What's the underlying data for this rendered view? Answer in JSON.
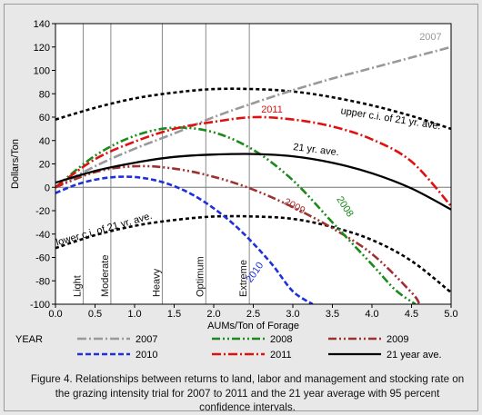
{
  "chart_data": {
    "type": "line",
    "xlabel": "AUMs/Ton of Forage",
    "ylabel": "Dollars/Ton",
    "xlim": [
      0,
      5
    ],
    "ylim": [
      -100,
      140
    ],
    "x_ticks": [
      "0.0",
      "0.5",
      "1.0",
      "1.5",
      "2.0",
      "2.5",
      "3.0",
      "3.5",
      "4.0",
      "4.5",
      "5.0"
    ],
    "y_ticks": [
      "140",
      "120",
      "100",
      "80",
      "60",
      "40",
      "20",
      "0",
      "-20",
      "-40",
      "-60",
      "-80",
      "-100"
    ],
    "grid": false,
    "stocking_rates": [
      {
        "label": "Light",
        "x": 0.35
      },
      {
        "label": "Moderate",
        "x": 0.7
      },
      {
        "label": "Heavy",
        "x": 1.35
      },
      {
        "label": "Optimum",
        "x": 1.9
      },
      {
        "label": "Extreme",
        "x": 2.45
      }
    ],
    "series": [
      {
        "name": "2007",
        "color": "#999999",
        "dash": "dashdot",
        "x": [
          0,
          0.5,
          1,
          1.5,
          2,
          2.5,
          3,
          3.5,
          4,
          4.5,
          5
        ],
        "y": [
          0,
          18,
          33,
          46,
          60,
          72,
          83,
          93,
          102,
          111,
          120
        ],
        "annotation": {
          "text": "2007",
          "x": 4.6,
          "y": 126
        }
      },
      {
        "name": "2008",
        "color": "#1a8a1a",
        "dash": "dashdotdot",
        "x": [
          0,
          0.5,
          1,
          1.5,
          2,
          2.5,
          3,
          3.5,
          4,
          4.3,
          4.55
        ],
        "y": [
          0,
          27,
          44,
          51,
          47,
          32,
          6,
          -30,
          -66,
          -88,
          -100
        ],
        "annotation": {
          "text": "2008",
          "x": 3.55,
          "y": -10
        }
      },
      {
        "name": "2009",
        "color": "#a03030",
        "dash": "dashdotdot",
        "x": [
          0,
          0.5,
          1,
          1.5,
          2,
          2.5,
          3,
          3.5,
          4,
          4.5,
          4.6
        ],
        "y": [
          0,
          13,
          18,
          16,
          9,
          -2,
          -17,
          -35,
          -57,
          -90,
          -100
        ],
        "annotation": {
          "text": "2009",
          "x": 2.88,
          "y": -14
        }
      },
      {
        "name": "2010",
        "color": "#1f2fdc",
        "dash": "dashed",
        "x": [
          0,
          0.25,
          0.5,
          0.75,
          1,
          1.25,
          1.5,
          1.75,
          2,
          2.25,
          2.5,
          2.75,
          3,
          3.25
        ],
        "y": [
          -5,
          2,
          6.5,
          8.8,
          8.8,
          6.2,
          1,
          -7,
          -18,
          -31.5,
          -48,
          -67,
          -89,
          -100
        ],
        "annotation": {
          "text": "2010",
          "x": 2.47,
          "y": -82
        }
      },
      {
        "name": "2011",
        "color": "#e01010",
        "dash": "dashdot",
        "x": [
          0,
          0.5,
          1,
          1.5,
          2,
          2.5,
          3,
          3.5,
          4,
          4.5,
          5
        ],
        "y": [
          0,
          24,
          39,
          50,
          56,
          60,
          58,
          52,
          41,
          22,
          -16
        ],
        "annotation": {
          "text": "2011",
          "x": 2.6,
          "y": 64
        }
      },
      {
        "name": "21 year ave.",
        "color": "#000000",
        "dash": "solid",
        "x": [
          0,
          0.5,
          1,
          1.5,
          2,
          2.5,
          3,
          3.5,
          4,
          4.5,
          5
        ],
        "y": [
          4,
          14,
          21,
          26,
          28,
          28.5,
          26.5,
          21,
          12,
          -1,
          -19
        ],
        "annotation": {
          "text": "21 yr. ave.",
          "x": 3.0,
          "y": 32
        }
      },
      {
        "name": "upper c.i. of 21 yr. ave.",
        "color": "#000000",
        "dash": "dotted",
        "legend": false,
        "x": [
          0,
          0.5,
          1,
          1.5,
          2,
          2.5,
          3,
          3.5,
          4,
          4.5,
          5
        ],
        "y": [
          58,
          68,
          76,
          81,
          84,
          84,
          82,
          77,
          70,
          61,
          50
        ],
        "annotation": {
          "text": "upper c.i. of 21 yr. ave.",
          "x": 3.6,
          "y": 63,
          "rotate": 9
        }
      },
      {
        "name": "lower c.i. of 21 yr. ave.",
        "color": "#000000",
        "dash": "dotted",
        "legend": false,
        "x": [
          0,
          0.5,
          1,
          1.5,
          2,
          2.5,
          3,
          3.5,
          4,
          4.5,
          5
        ],
        "y": [
          -52,
          -41,
          -33,
          -28,
          -25,
          -25,
          -27,
          -34,
          -45,
          -63,
          -90
        ],
        "annotation": {
          "text": "lower c.i. of 21 yr. ave.",
          "x": 0.02,
          "y": -50,
          "rotate": -16
        }
      }
    ]
  },
  "legend": {
    "title": "YEAR"
  },
  "caption": "Figure 4. Relationships between returns to land, labor and management and stocking rate on the grazing intensity trial for 2007 to 2011 and the 21 year average with 95 percent confidence intervals."
}
